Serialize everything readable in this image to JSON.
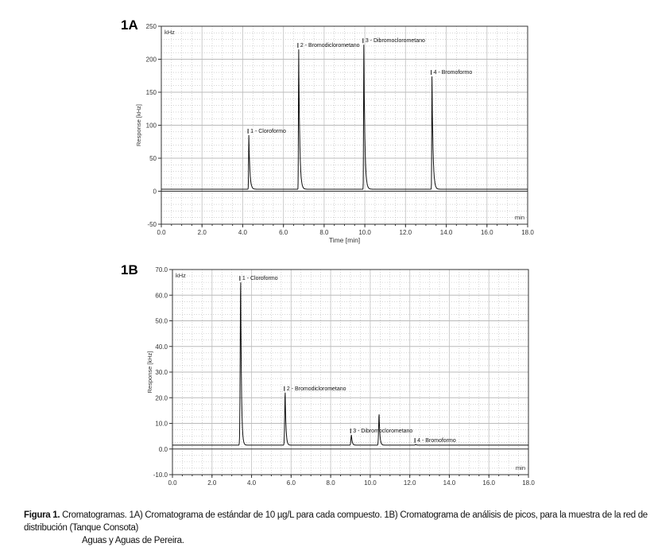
{
  "chart_data": [
    {
      "type": "line",
      "panel": "1A",
      "unit": "kHz",
      "ylabel": "Response [kHz]",
      "xlabel": "Time [min]",
      "xunit": "min",
      "xlim": [
        0,
        18
      ],
      "ylim": [
        -50,
        250
      ],
      "xticks": [
        "0.0",
        "2.0",
        "4.0",
        "6.0",
        "8.0",
        "10.0",
        "12.0",
        "14.0",
        "16.0",
        "18.0"
      ],
      "yticks": [
        "-50",
        "0",
        "50",
        "100",
        "150",
        "200",
        "250"
      ],
      "baseline": 3,
      "peaks": [
        {
          "label": "1 - Cloroformo",
          "x": 4.3,
          "y": 85
        },
        {
          "label": "2 - Bromodiclorometano",
          "x": 6.75,
          "y": 215
        },
        {
          "label": "3 - Dibromoclorometano",
          "x": 9.95,
          "y": 222
        },
        {
          "label": "4 - Bromoformo",
          "x": 13.3,
          "y": 174
        }
      ]
    },
    {
      "type": "line",
      "panel": "1B",
      "unit": "kHz",
      "ylabel": "Response [kHz]",
      "xlabel": "",
      "xunit": "min",
      "xlim": [
        0,
        18
      ],
      "ylim": [
        -10,
        70
      ],
      "xticks": [
        "0.0",
        "2.0",
        "4.0",
        "6.0",
        "8.0",
        "10.0",
        "12.0",
        "14.0",
        "16.0",
        "18.0"
      ],
      "yticks": [
        "-10.0",
        "0.0",
        "10.0",
        "20.0",
        "30.0",
        "40.0",
        "50.0",
        "60.0",
        "70.0"
      ],
      "baseline": 1.5,
      "peaks": [
        {
          "label": "1 - Cloroformo",
          "x": 3.45,
          "y": 65
        },
        {
          "label": "2 - Bromodiclorometano",
          "x": 5.7,
          "y": 22
        },
        {
          "label": "3 - Dibromoclorometano",
          "x": 9.05,
          "y": 5.5
        },
        {
          "label": "",
          "x": 10.45,
          "y": 13.5
        },
        {
          "label": "4 - Bromoformo",
          "x": 12.3,
          "y": 1.8
        }
      ]
    }
  ],
  "caption": {
    "lead": "Figura 1.",
    "text": "Cromatogramas. 1A) Cromatograma de estándar de 10 µg/L para cada compuesto. 1B) Cromatograma de análisis de picos, para la muestra de la red de distribución (Tanque Consota)",
    "text2": "Aguas y Aguas de Pereira."
  }
}
